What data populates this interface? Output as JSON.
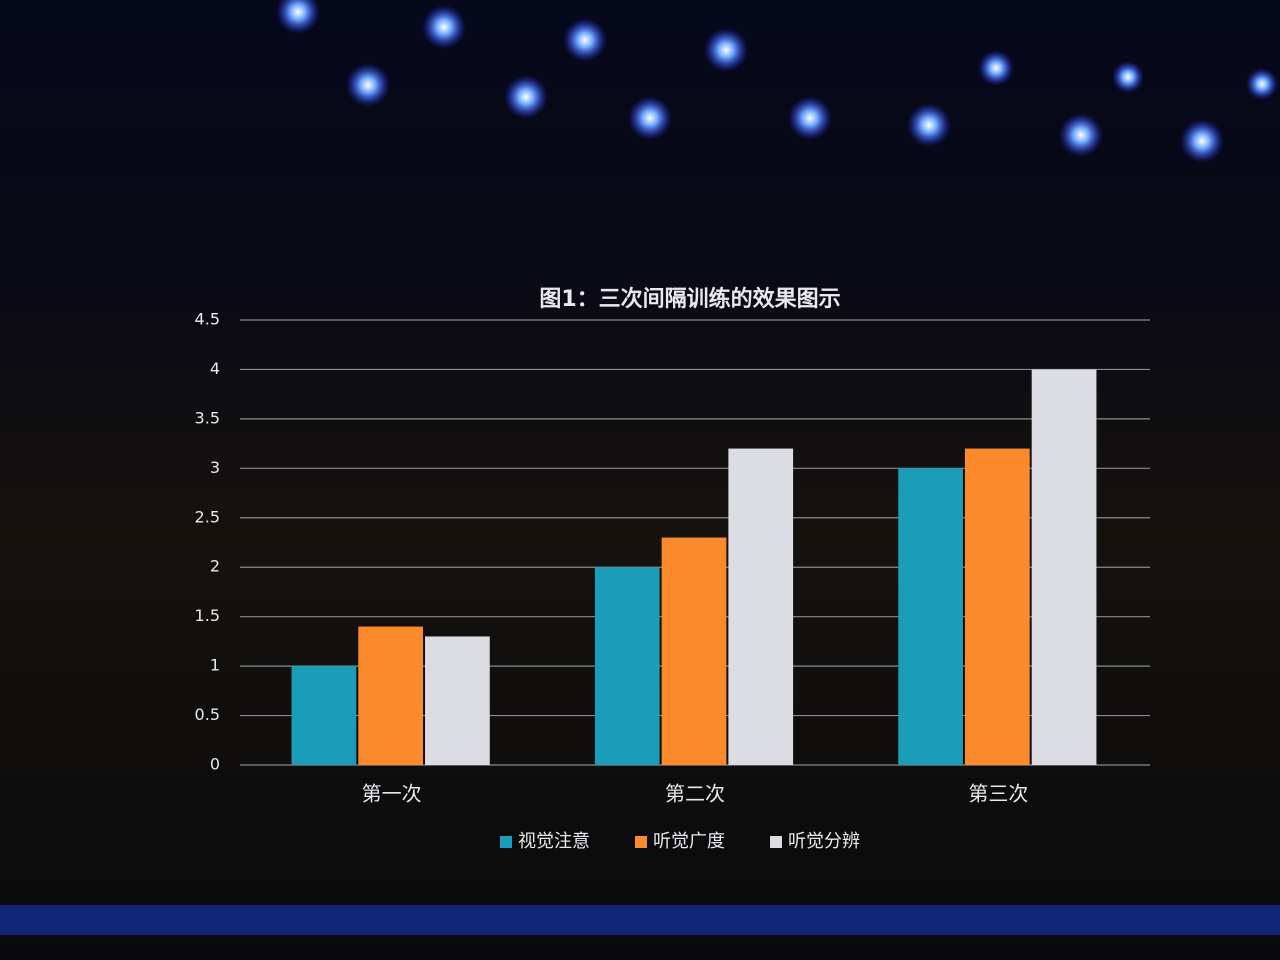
{
  "chart_data": {
    "type": "bar",
    "title": "图1：三次间隔训练的效果图示",
    "categories": [
      "第一次",
      "第二次",
      "第三次"
    ],
    "series": [
      {
        "name": "视觉注意",
        "color": "#1b9cb8",
        "values": [
          1.0,
          2.0,
          3.0
        ]
      },
      {
        "name": "听觉广度",
        "color": "#fb8a2c",
        "values": [
          1.4,
          2.3,
          3.2
        ]
      },
      {
        "name": "听觉分辨",
        "color": "#dcdce4",
        "values": [
          1.3,
          3.2,
          4.0
        ]
      }
    ],
    "ylim": [
      0,
      4.5
    ],
    "yticks": [
      0,
      0.5,
      1,
      1.5,
      2,
      2.5,
      3,
      3.5,
      4,
      4.5
    ],
    "grid": true,
    "legend": "bottom"
  }
}
